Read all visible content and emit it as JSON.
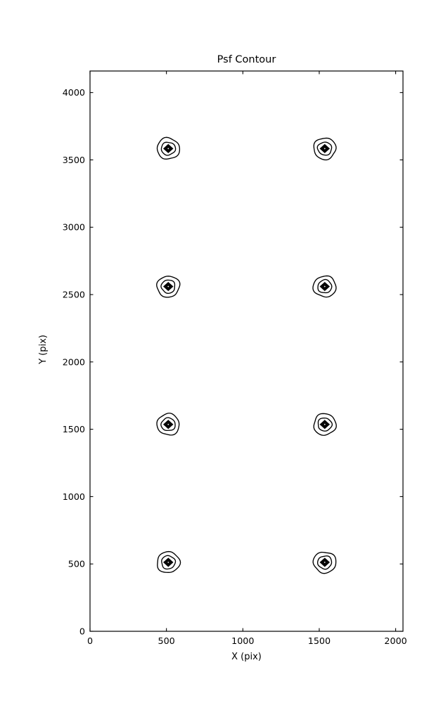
{
  "chart_data": {
    "type": "contour",
    "title": "Psf Contour",
    "xlabel": "X (pix)",
    "ylabel": "Y (pix)",
    "xlim": [
      0,
      2048
    ],
    "ylim": [
      0,
      4160
    ],
    "x_ticks": [
      0,
      500,
      1000,
      1500,
      2000
    ],
    "y_ticks": [
      0,
      500,
      1000,
      1500,
      2000,
      2500,
      3000,
      3500,
      4000
    ],
    "grid": false,
    "legend": false,
    "line_color": "#000000",
    "background_color": "#ffffff",
    "contour_levels_per_psf": 6,
    "psf_centers": [
      {
        "x": 512,
        "y": 512
      },
      {
        "x": 1536,
        "y": 512
      },
      {
        "x": 512,
        "y": 1536
      },
      {
        "x": 1536,
        "y": 1536
      },
      {
        "x": 512,
        "y": 2560
      },
      {
        "x": 1536,
        "y": 2560
      },
      {
        "x": 512,
        "y": 3584
      },
      {
        "x": 1536,
        "y": 3584
      }
    ]
  }
}
